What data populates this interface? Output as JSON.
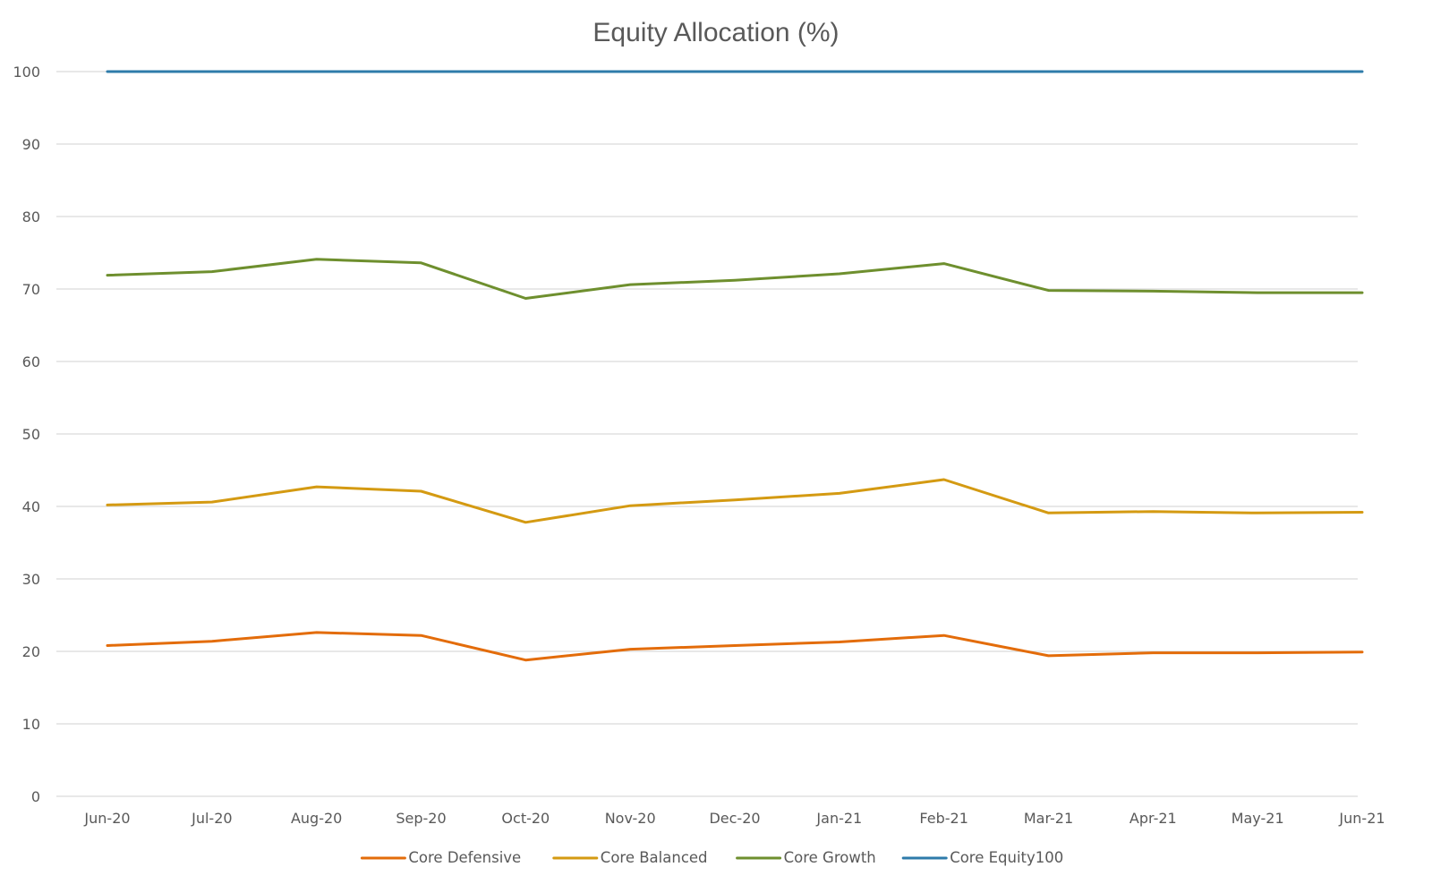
{
  "chart_data": {
    "type": "line",
    "title": "Equity Allocation (%)",
    "xlabel": "",
    "ylabel": "",
    "ylim": [
      0,
      100
    ],
    "yticks": [
      0,
      10,
      20,
      30,
      40,
      50,
      60,
      70,
      80,
      90,
      100
    ],
    "grid": true,
    "legend_position": "bottom",
    "categories": [
      "Jun-20",
      "Jul-20",
      "Aug-20",
      "Sep-20",
      "Oct-20",
      "Nov-20",
      "Dec-20",
      "Jan-21",
      "Feb-21",
      "Mar-21",
      "Apr-21",
      "May-21",
      "Jun-21"
    ],
    "series": [
      {
        "name": "Core Defensive",
        "color": "#E36C0A",
        "values": [
          20.8,
          21.4,
          22.6,
          22.2,
          18.8,
          20.3,
          20.8,
          21.3,
          22.2,
          19.4,
          19.8,
          19.8,
          19.9
        ]
      },
      {
        "name": "Core Balanced",
        "color": "#D49A12",
        "values": [
          40.2,
          40.6,
          42.7,
          42.1,
          37.8,
          40.1,
          40.9,
          41.8,
          43.7,
          39.1,
          39.3,
          39.1,
          39.2
        ]
      },
      {
        "name": "Core Growth",
        "color": "#6E8F2E",
        "values": [
          71.9,
          72.4,
          74.1,
          73.6,
          68.7,
          70.6,
          71.2,
          72.1,
          73.5,
          69.8,
          69.7,
          69.5,
          69.5
        ]
      },
      {
        "name": "Core Equity100",
        "color": "#2E7BAA",
        "values": [
          100,
          100,
          100,
          100,
          100,
          100,
          100,
          100,
          100,
          100,
          100,
          100,
          100
        ]
      }
    ],
    "gridline_color": "#D9D9D9",
    "text_color": "#595959"
  }
}
